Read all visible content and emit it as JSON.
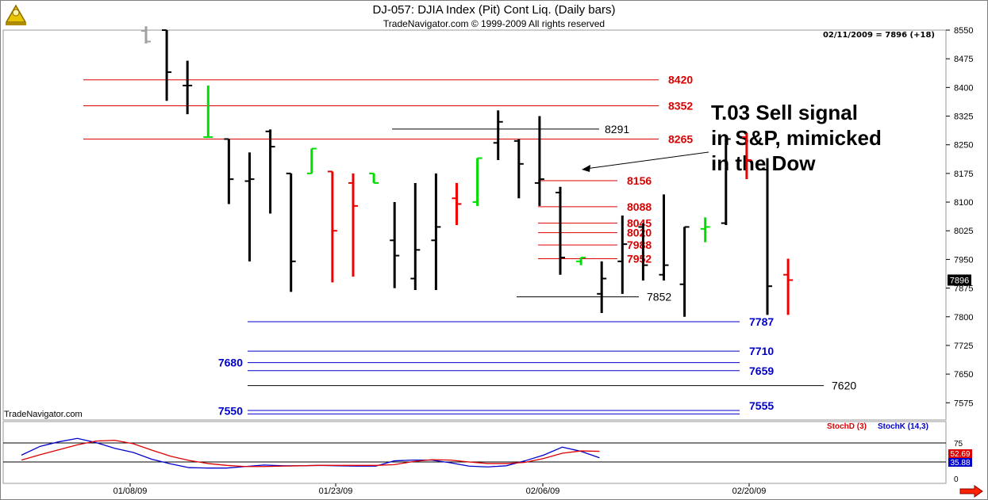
{
  "header": {
    "title": "DJ-057:  DJIA Index (Pit) Cont Liq.  (Daily bars)",
    "copyright": "TradeNavigator.com © 1999-2009 All rights reserved",
    "datestamp": "02/11/2009 = 7896 (+18)"
  },
  "brand": "TradeNavigator.com",
  "annotation": {
    "lines": [
      "T.03 Sell signal",
      "in S&P, mimicked",
      "in the Dow"
    ]
  },
  "chart_data": {
    "type": "ohlc",
    "y_axis": {
      "ticks": [
        8550,
        8475,
        8400,
        8325,
        8250,
        8175,
        8100,
        8025,
        7950,
        7875,
        7800,
        7725,
        7650,
        7575
      ],
      "range": [
        7530,
        8550
      ]
    },
    "x_axis": {
      "labels": [
        "01/08/09",
        "01/23/09",
        "02/06/09",
        "02/20/09"
      ]
    },
    "last_price": "7896",
    "colors": {
      "up": "#00dd00",
      "down": "#ee0000",
      "neutral": "#000000",
      "resistance": "#dd0000",
      "support": "#0000cc",
      "other": "#000000"
    },
    "bars": [
      {
        "o": 8548,
        "h": 8560,
        "l": 8515,
        "c": 8520,
        "color": "grey"
      },
      {
        "o": 8550,
        "h": 8550,
        "l": 8365,
        "c": 8440,
        "color": "black"
      },
      {
        "o": 8405,
        "h": 8470,
        "l": 8330,
        "c": 8405,
        "color": "black"
      },
      {
        "o": 8270,
        "h": 8405,
        "l": 8270,
        "c": 8270,
        "color": "green"
      },
      {
        "o": 8265,
        "h": 8265,
        "l": 8095,
        "c": 8160,
        "color": "black"
      },
      {
        "o": 8155,
        "h": 8230,
        "l": 7945,
        "c": 8160,
        "color": "black"
      },
      {
        "o": 8285,
        "h": 8290,
        "l": 8070,
        "c": 8245,
        "color": "black"
      },
      {
        "o": 8175,
        "h": 8175,
        "l": 7865,
        "c": 7945,
        "color": "black"
      },
      {
        "o": 8175,
        "h": 8240,
        "l": 8175,
        "c": 8240,
        "color": "green"
      },
      {
        "o": 8180,
        "h": 8180,
        "l": 7890,
        "c": 8025,
        "color": "red"
      },
      {
        "o": 8150,
        "h": 8175,
        "l": 7905,
        "c": 8090,
        "color": "red"
      },
      {
        "o": 8175,
        "h": 8175,
        "l": 8150,
        "c": 8150,
        "color": "green"
      },
      {
        "o": 8000,
        "h": 8100,
        "l": 7875,
        "c": 7960,
        "color": "black"
      },
      {
        "o": 7900,
        "h": 8150,
        "l": 7870,
        "c": 7975,
        "color": "black"
      },
      {
        "o": 8000,
        "h": 8175,
        "l": 7870,
        "c": 8035,
        "color": "black"
      },
      {
        "o": 8110,
        "h": 8150,
        "l": 8040,
        "c": 8095,
        "color": "red"
      },
      {
        "o": 8100,
        "h": 8215,
        "l": 8090,
        "c": 8215,
        "color": "green"
      },
      {
        "o": 8255,
        "h": 8340,
        "l": 8210,
        "c": 8310,
        "color": "black"
      },
      {
        "o": 8260,
        "h": 8265,
        "l": 8110,
        "c": 8200,
        "color": "black"
      },
      {
        "o": 8150,
        "h": 8325,
        "l": 8090,
        "c": 8160,
        "color": "black"
      },
      {
        "o": 8125,
        "h": 8140,
        "l": 7910,
        "c": 7955,
        "color": "black"
      },
      {
        "o": 7945,
        "h": 7955,
        "l": 7935,
        "c": 7955,
        "color": "green"
      },
      {
        "o": 7860,
        "h": 7945,
        "l": 7810,
        "c": 7900,
        "color": "black"
      },
      {
        "o": 7945,
        "h": 8065,
        "l": 7860,
        "c": 7990,
        "color": "black"
      },
      {
        "o": 8035,
        "h": 8045,
        "l": 7895,
        "c": 7935,
        "color": "black"
      },
      {
        "o": 7910,
        "h": 8120,
        "l": 7895,
        "c": 7935,
        "color": "black"
      },
      {
        "o": 7885,
        "h": 8035,
        "l": 7800,
        "c": 8035,
        "color": "black"
      },
      {
        "o": 8030,
        "h": 8060,
        "l": 7995,
        "c": 8035,
        "color": "green"
      },
      {
        "o": 8045,
        "h": 8275,
        "l": 8040,
        "c": 8265,
        "color": "black"
      },
      {
        "o": 8270,
        "h": 8280,
        "l": 8160,
        "c": 8210,
        "color": "red"
      },
      {
        "o": 8185,
        "h": 8215,
        "l": 7805,
        "c": 7880,
        "color": "black"
      },
      {
        "o": 7910,
        "h": 7952,
        "l": 7805,
        "c": 7896,
        "color": "red"
      }
    ],
    "levels": [
      {
        "value": 8420,
        "label": "8420",
        "kind": "resistance"
      },
      {
        "value": 8352,
        "label": "8352",
        "kind": "resistance"
      },
      {
        "value": 8291,
        "label": "8291",
        "kind": "other"
      },
      {
        "value": 8265,
        "label": "8265",
        "kind": "resistance"
      },
      {
        "value": 8156,
        "label": "8156",
        "kind": "resistance"
      },
      {
        "value": 8088,
        "label": "8088",
        "kind": "resistance"
      },
      {
        "value": 8045,
        "label": "8045",
        "kind": "resistance"
      },
      {
        "value": 8020,
        "label": "8020",
        "kind": "resistance"
      },
      {
        "value": 7988,
        "label": "7988",
        "kind": "resistance"
      },
      {
        "value": 7952,
        "label": "7952",
        "kind": "resistance"
      },
      {
        "value": 7852,
        "label": "7852",
        "kind": "other"
      },
      {
        "value": 7787,
        "label": "7787",
        "kind": "support"
      },
      {
        "value": 7710,
        "label": "7710",
        "kind": "support"
      },
      {
        "value": 7680,
        "label": "7680",
        "kind": "support"
      },
      {
        "value": 7659,
        "label": "7659",
        "kind": "support"
      },
      {
        "value": 7620,
        "label": "7620",
        "kind": "other"
      },
      {
        "value": 7555,
        "label": "7555",
        "kind": "support"
      },
      {
        "value": 7550,
        "label": "7550",
        "kind": "support"
      }
    ],
    "stochastic": {
      "labels": [
        "StochD (3)",
        "StochK (14,3)"
      ],
      "colors": [
        "#dd0000",
        "#0000cc"
      ],
      "axis_tick": "75",
      "axis_low": "0",
      "d_value": "52.69",
      "k_value": "35.88",
      "d": [
        30,
        44,
        57,
        70,
        80,
        82,
        73,
        56,
        40,
        29,
        21,
        16,
        13,
        13,
        14,
        15,
        16,
        16,
        16,
        16,
        18,
        26,
        31,
        30,
        25,
        21,
        21,
        24,
        34,
        48,
        54,
        53
      ],
      "k": [
        43,
        66,
        78,
        87,
        76,
        61,
        50,
        32,
        20,
        10,
        9,
        9,
        13,
        17,
        15,
        15,
        16,
        15,
        14,
        14,
        28,
        30,
        30,
        23,
        14,
        12,
        15,
        28,
        43,
        64,
        53,
        36
      ]
    }
  }
}
